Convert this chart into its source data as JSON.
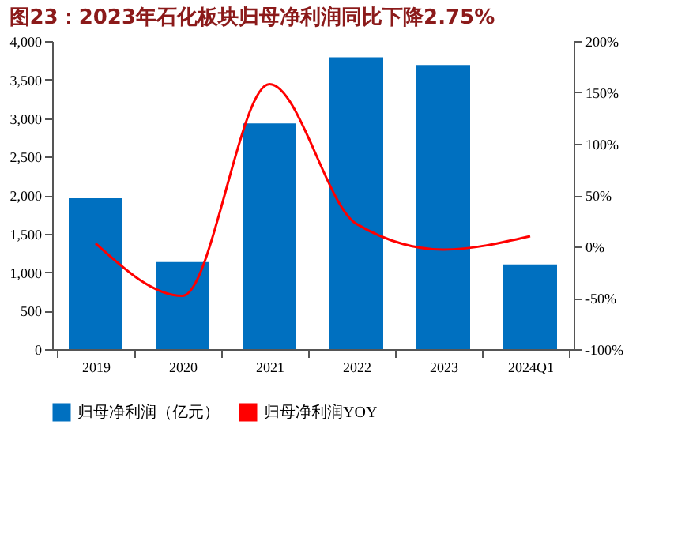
{
  "chart_data": {
    "type": "bar",
    "title": "图23：2023年石化板块归母净利润同比下降2.75%",
    "categories": [
      "2019",
      "2020",
      "2021",
      "2022",
      "2023",
      "2024Q1"
    ],
    "series": [
      {
        "name": "归母净利润（亿元）",
        "color": "#0070c0",
        "values": [
          1960,
          1130,
          2930,
          3790,
          3690,
          1100
        ]
      },
      {
        "name": "归母净利润YOY",
        "type": "line",
        "axis": "y2",
        "color": "#ff0000",
        "values": [
          3,
          -48,
          158,
          22,
          -3,
          10
        ]
      }
    ],
    "ylim": [
      0,
      4000
    ],
    "yticks": [
      {
        "value": 0,
        "label": "0"
      },
      {
        "value": 500,
        "label": "500"
      },
      {
        "value": 1000,
        "label": "1,000"
      },
      {
        "value": 1500,
        "label": "1,500"
      },
      {
        "value": 2000,
        "label": "2,000"
      },
      {
        "value": 2500,
        "label": "2,500"
      },
      {
        "value": 3000,
        "label": "3,000"
      },
      {
        "value": 3500,
        "label": "3,500"
      },
      {
        "value": 4000,
        "label": "4,000"
      }
    ],
    "y2lim": [
      -100,
      200
    ],
    "y2ticks": [
      {
        "value": -100,
        "label": "-100%"
      },
      {
        "value": -50,
        "label": "-50%"
      },
      {
        "value": 0,
        "label": "0%"
      },
      {
        "value": 50,
        "label": "50%"
      },
      {
        "value": 100,
        "label": "100%"
      },
      {
        "value": 150,
        "label": "150%"
      },
      {
        "value": 200,
        "label": "200%"
      }
    ],
    "legend": "bottom",
    "grid": false
  }
}
